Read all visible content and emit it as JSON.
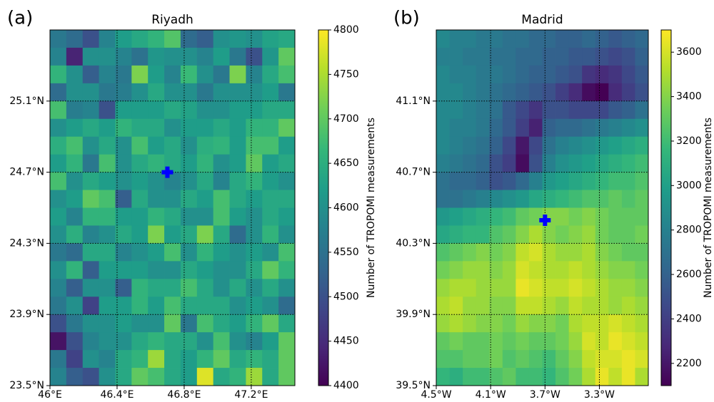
{
  "chart_data": [
    {
      "type": "heatmap",
      "panel_label": "(a)",
      "title": "Riyadh",
      "colormap": "viridis",
      "colorbar_label": "Number of TROPOMI measurements",
      "xlim": [
        46,
        47.46
      ],
      "ylim": [
        23.5,
        25.5
      ],
      "xticks": [
        {
          "value": 46,
          "label": "46°E"
        },
        {
          "value": 46.4,
          "label": "46.4°E"
        },
        {
          "value": 46.8,
          "label": "46.8°E"
        },
        {
          "value": 47.2,
          "label": "47.2°E"
        }
      ],
      "yticks": [
        {
          "value": 23.5,
          "label": "23.5°N"
        },
        {
          "value": 23.9,
          "label": "23.9°N"
        },
        {
          "value": 24.3,
          "label": "24.3°N"
        },
        {
          "value": 24.7,
          "label": "24.7°N"
        },
        {
          "value": 25.1,
          "label": "25.1°N"
        }
      ],
      "clim": [
        4400,
        4800
      ],
      "cticks": [
        4400,
        4450,
        4500,
        4550,
        4600,
        4650,
        4700,
        4750,
        4800
      ],
      "grid": true,
      "marker": {
        "x": 46.7,
        "y": 24.7,
        "color": "#0000ff"
      },
      "z": [
        [
          4560,
          4540,
          4500,
          4580,
          4620,
          4640,
          4660,
          4690,
          4540,
          4520,
          4600,
          4610,
          4600,
          4630,
          4640
        ],
        [
          4580,
          4440,
          4600,
          4600,
          4580,
          4550,
          4610,
          4600,
          4600,
          4580,
          4620,
          4560,
          4500,
          4610,
          4700
        ],
        [
          4660,
          4600,
          4520,
          4580,
          4560,
          4720,
          4620,
          4580,
          4670,
          4600,
          4560,
          4720,
          4580,
          4640,
          4680
        ],
        [
          4540,
          4600,
          4600,
          4560,
          4570,
          4600,
          4640,
          4600,
          4600,
          4560,
          4600,
          4600,
          4600,
          4620,
          4560
        ],
        [
          4680,
          4570,
          4580,
          4500,
          4620,
          4620,
          4620,
          4640,
          4630,
          4600,
          4600,
          4620,
          4620,
          4640,
          4640
        ],
        [
          4600,
          4620,
          4640,
          4620,
          4660,
          4640,
          4640,
          4600,
          4620,
          4620,
          4640,
          4620,
          4660,
          4660,
          4700
        ],
        [
          4650,
          4680,
          4600,
          4640,
          4600,
          4680,
          4620,
          4640,
          4600,
          4650,
          4660,
          4620,
          4680,
          4680,
          4620
        ],
        [
          4620,
          4660,
          4560,
          4680,
          4600,
          4640,
          4660,
          4640,
          4620,
          4660,
          4600,
          4620,
          4700,
          4620,
          4640
        ],
        [
          4680,
          4600,
          4640,
          4620,
          4600,
          4620,
          4600,
          4580,
          4600,
          4640,
          4580,
          4640,
          4660,
          4620,
          4600
        ],
        [
          4600,
          4620,
          4700,
          4680,
          4520,
          4640,
          4600,
          4600,
          4640,
          4620,
          4680,
          4640,
          4620,
          4640,
          4640
        ],
        [
          4620,
          4580,
          4660,
          4660,
          4620,
          4620,
          4660,
          4640,
          4600,
          4600,
          4680,
          4620,
          4600,
          4640,
          4620
        ],
        [
          4600,
          4650,
          4580,
          4600,
          4640,
          4620,
          4720,
          4620,
          4640,
          4720,
          4640,
          4540,
          4600,
          4660,
          4600
        ],
        [
          4560,
          4540,
          4640,
          4640,
          4580,
          4600,
          4620,
          4680,
          4600,
          4660,
          4620,
          4600,
          4620,
          4600,
          4680
        ],
        [
          4600,
          4660,
          4520,
          4620,
          4620,
          4620,
          4600,
          4600,
          4640,
          4620,
          4600,
          4600,
          4640,
          4700,
          4660
        ],
        [
          4580,
          4520,
          4600,
          4600,
          4520,
          4660,
          4640,
          4640,
          4680,
          4640,
          4600,
          4640,
          4600,
          4640,
          4600
        ],
        [
          4560,
          4600,
          4480,
          4620,
          4620,
          4660,
          4620,
          4680,
          4640,
          4640,
          4640,
          4600,
          4620,
          4600,
          4540
        ],
        [
          4500,
          4560,
          4600,
          4600,
          4620,
          4600,
          4600,
          4700,
          4560,
          4680,
          4640,
          4620,
          4660,
          4700,
          4640
        ],
        [
          4420,
          4500,
          4580,
          4600,
          4600,
          4640,
          4660,
          4640,
          4640,
          4600,
          4680,
          4600,
          4580,
          4620,
          4700
        ],
        [
          4560,
          4480,
          4600,
          4580,
          4640,
          4660,
          4740,
          4640,
          4620,
          4660,
          4700,
          4640,
          4660,
          4640,
          4700
        ],
        [
          4580,
          4520,
          4500,
          4600,
          4640,
          4700,
          4680,
          4640,
          4620,
          4780,
          4640,
          4660,
          4740,
          4640,
          4700
        ]
      ]
    },
    {
      "type": "heatmap",
      "panel_label": "(b)",
      "title": "Madrid",
      "colormap": "viridis",
      "colorbar_label": "Number of TROPOMI measurements",
      "xlim": [
        -4.5,
        -2.94
      ],
      "ylim": [
        39.5,
        41.5
      ],
      "xticks": [
        {
          "value": -4.5,
          "label": "4.5°W"
        },
        {
          "value": -4.1,
          "label": "4.1°W"
        },
        {
          "value": -3.7,
          "label": "3.7°W"
        },
        {
          "value": -3.3,
          "label": "3.3°W"
        }
      ],
      "yticks": [
        {
          "value": 39.5,
          "label": "39.5°N"
        },
        {
          "value": 39.9,
          "label": "39.9°N"
        },
        {
          "value": 40.3,
          "label": "40.3°N"
        },
        {
          "value": 40.7,
          "label": "40.7°N"
        },
        {
          "value": 41.1,
          "label": "41.1°N"
        }
      ],
      "clim": [
        2100,
        3700
      ],
      "cticks": [
        2200,
        2400,
        2600,
        2800,
        3000,
        3200,
        3400,
        3600
      ],
      "grid": true,
      "marker": {
        "x": -3.7,
        "y": 40.43,
        "color": "#0000ff"
      },
      "z": [
        [
          2850,
          2800,
          2800,
          2750,
          2750,
          2700,
          2700,
          2650,
          2650,
          2600,
          2600,
          2650,
          2600,
          2550,
          2600,
          2650
        ],
        [
          2800,
          2800,
          2750,
          2750,
          2700,
          2700,
          2650,
          2650,
          2600,
          2600,
          2550,
          2550,
          2500,
          2450,
          2500,
          2600
        ],
        [
          2850,
          2800,
          2800,
          2750,
          2750,
          2700,
          2650,
          2600,
          2600,
          2550,
          2500,
          2350,
          2300,
          2350,
          2450,
          2550
        ],
        [
          2850,
          2850,
          2800,
          2750,
          2700,
          2650,
          2600,
          2550,
          2500,
          2400,
          2300,
          2150,
          2100,
          2300,
          2400,
          2500
        ],
        [
          2850,
          2850,
          2800,
          2750,
          2700,
          2550,
          2450,
          2350,
          2500,
          2500,
          2450,
          2450,
          2450,
          2550,
          2600,
          2700
        ],
        [
          2850,
          2800,
          2800,
          2750,
          2650,
          2550,
          2400,
          2250,
          2600,
          2650,
          2650,
          2700,
          2750,
          2800,
          2850,
          2900
        ],
        [
          2850,
          2800,
          2750,
          2700,
          2600,
          2450,
          2200,
          2450,
          2700,
          2800,
          2850,
          2900,
          2950,
          3000,
          3050,
          3100
        ],
        [
          2800,
          2750,
          2700,
          2650,
          2500,
          2400,
          2150,
          2500,
          2800,
          2900,
          2950,
          3000,
          3050,
          3100,
          3150,
          3200
        ],
        [
          2700,
          2650,
          2650,
          2600,
          2500,
          2550,
          2650,
          2800,
          2950,
          3000,
          3050,
          3100,
          3150,
          3200,
          3200,
          3250
        ],
        [
          2700,
          2700,
          2750,
          2800,
          2850,
          2900,
          2950,
          3050,
          3100,
          3150,
          3200,
          3250,
          3250,
          3300,
          3250,
          3300
        ],
        [
          2950,
          3000,
          3050,
          3100,
          3150,
          3200,
          3300,
          3350,
          3400,
          3400,
          3350,
          3400,
          3350,
          3300,
          3300,
          3300
        ],
        [
          3050,
          3100,
          3150,
          3150,
          3250,
          3300,
          3400,
          3500,
          3400,
          3350,
          3400,
          3450,
          3350,
          3300,
          3300,
          3350
        ],
        [
          3250,
          3300,
          3350,
          3400,
          3350,
          3400,
          3550,
          3600,
          3500,
          3450,
          3450,
          3500,
          3400,
          3350,
          3300,
          3300
        ],
        [
          3350,
          3400,
          3450,
          3450,
          3400,
          3450,
          3600,
          3550,
          3500,
          3500,
          3550,
          3500,
          3450,
          3400,
          3400,
          3350
        ],
        [
          3450,
          3500,
          3500,
          3450,
          3450,
          3450,
          3650,
          3600,
          3550,
          3550,
          3600,
          3550,
          3500,
          3450,
          3450,
          3400
        ],
        [
          3500,
          3550,
          3450,
          3450,
          3400,
          3400,
          3550,
          3550,
          3500,
          3450,
          3550,
          3500,
          3500,
          3450,
          3500,
          3450
        ],
        [
          3450,
          3500,
          3450,
          3400,
          3400,
          3350,
          3450,
          3400,
          3400,
          3350,
          3500,
          3550,
          3550,
          3600,
          3550,
          3500
        ],
        [
          3300,
          3350,
          3300,
          3300,
          3350,
          3300,
          3350,
          3300,
          3300,
          3350,
          3450,
          3600,
          3550,
          3650,
          3600,
          3550
        ],
        [
          3250,
          3250,
          3300,
          3300,
          3350,
          3250,
          3300,
          3250,
          3200,
          3300,
          3400,
          3550,
          3600,
          3600,
          3650,
          3600
        ],
        [
          3150,
          3100,
          3200,
          3200,
          3250,
          3300,
          3200,
          3200,
          3150,
          3250,
          3350,
          3500,
          3650,
          3550,
          3650,
          3500
        ]
      ]
    }
  ]
}
